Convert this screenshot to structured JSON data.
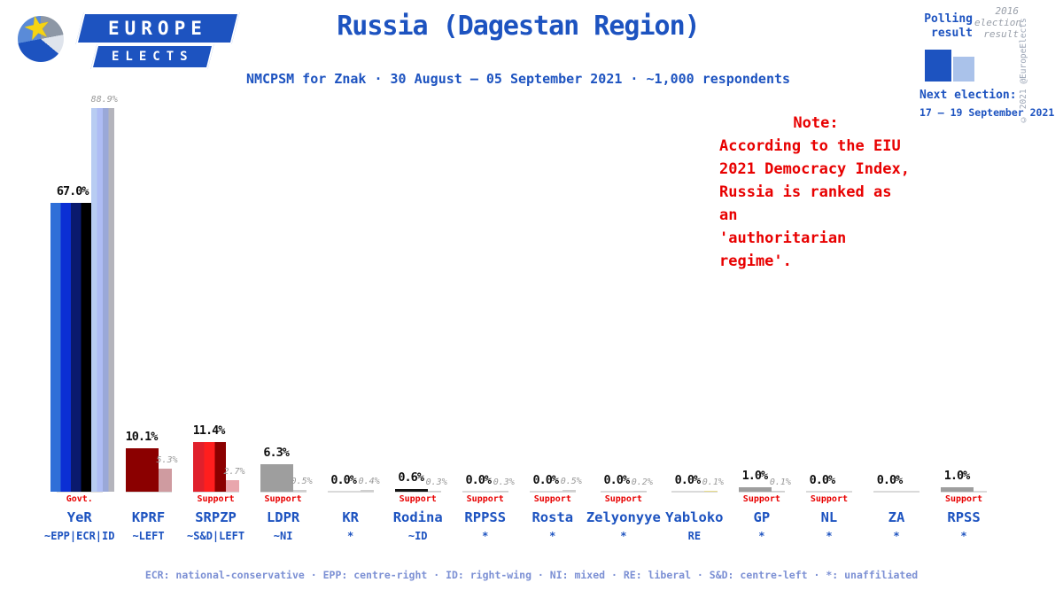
{
  "brand": {
    "line1": "EUROPE",
    "line2": "ELECTS",
    "copyright": "© 2021 @EuropeElects"
  },
  "header": {
    "title": "Russia (Dagestan Region)",
    "subtitle": "NMCPSM for Znak · 30 August – 05 September 2021 · ~1,000 respondents"
  },
  "legend": {
    "polling_label": "Polling result",
    "election_label": "2016 election result",
    "polling_color": "#1d53c0",
    "election_color": "#aac2ea",
    "next_election_label": "Next election:",
    "next_election_date": "17 – 19 September 2021"
  },
  "note": {
    "lines": [
      "Note:",
      "According to the EIU",
      "2021 Democracy Index,",
      "Russia is ranked as an",
      "'authoritarian regime'."
    ]
  },
  "footer": {
    "text": "ECR: national-conservative · EPP: centre-right · ID: right-wing · NI: mixed · RE: liberal · S&D: centre-left · *: unaffiliated"
  },
  "chart_data": {
    "type": "bar",
    "title": "Russia (Dagestan Region)",
    "unit": "%",
    "ylim": [
      0,
      92
    ],
    "grid": false,
    "legend_position": "top-right",
    "series": [
      {
        "name": "Polling result"
      },
      {
        "name": "2016 election result"
      }
    ],
    "categories": [
      "YeR",
      "KPRF",
      "SRPZP",
      "LDPR",
      "KR",
      "Rodina",
      "RPPSS",
      "Rosta",
      "Zelyonyye",
      "Yabloko",
      "GP",
      "NL",
      "ZA",
      "RPSS"
    ],
    "parties": [
      {
        "name": "YeR",
        "affiliation": "~EPP|ECR|ID",
        "tag": "Govt.",
        "polling": 67.0,
        "polling_label": "67.0%",
        "election": 88.9,
        "election_label": "88.9%",
        "wide": true,
        "colors": [
          "#2f6fd8",
          "#0b2fd4",
          "#0a1a6e",
          "#000000"
        ],
        "election_colors": [
          "#b8ccf2",
          "#aebcf4",
          "#9aa8d8",
          "#b4b4bc"
        ]
      },
      {
        "name": "KPRF",
        "affiliation": "~LEFT",
        "tag": "",
        "polling": 10.1,
        "polling_label": "10.1%",
        "election": 5.3,
        "election_label": "5.3%",
        "colors": [
          "#8b0000"
        ],
        "election_colors": [
          "#cf9ba0"
        ]
      },
      {
        "name": "SRPZP",
        "affiliation": "~S&D|LEFT",
        "tag": "Support",
        "polling": 11.4,
        "polling_label": "11.4%",
        "election": 2.7,
        "election_label": "2.7%",
        "colors": [
          "#e0202c",
          "#ff1e1e",
          "#8b0000"
        ],
        "election_colors": [
          "#e9a6ad"
        ]
      },
      {
        "name": "LDPR",
        "affiliation": "~NI",
        "tag": "Support",
        "polling": 6.3,
        "polling_label": "6.3%",
        "election": 0.5,
        "election_label": "0.5%",
        "colors": [
          "#9e9e9e"
        ],
        "election_colors": [
          "#cfcfcf"
        ]
      },
      {
        "name": "KR",
        "affiliation": "*",
        "tag": "",
        "polling": 0.0,
        "polling_label": "0.0%",
        "election": 0.4,
        "election_label": "0.4%",
        "colors": [
          "#9e9e9e"
        ],
        "election_colors": [
          "#cfcfcf"
        ]
      },
      {
        "name": "Rodina",
        "affiliation": "~ID",
        "tag": "Support",
        "polling": 0.6,
        "polling_label": "0.6%",
        "election": 0.3,
        "election_label": "0.3%",
        "colors": [
          "#141414"
        ],
        "election_colors": [
          "#cfcfcf"
        ]
      },
      {
        "name": "RPPSS",
        "affiliation": "*",
        "tag": "Support",
        "polling": 0.0,
        "polling_label": "0.0%",
        "election": 0.3,
        "election_label": "0.3%",
        "colors": [
          "#9e9e9e"
        ],
        "election_colors": [
          "#cfcfcf"
        ]
      },
      {
        "name": "Rosta",
        "affiliation": "*",
        "tag": "Support",
        "polling": 0.0,
        "polling_label": "0.0%",
        "election": 0.5,
        "election_label": "0.5%",
        "colors": [
          "#9e9e9e"
        ],
        "election_colors": [
          "#cfcfcf"
        ]
      },
      {
        "name": "Zelyonyye",
        "affiliation": "*",
        "tag": "Support",
        "polling": 0.0,
        "polling_label": "0.0%",
        "election": 0.2,
        "election_label": "0.2%",
        "colors": [
          "#9e9e9e"
        ],
        "election_colors": [
          "#cfcfcf"
        ]
      },
      {
        "name": "Yabloko",
        "affiliation": "RE",
        "tag": "",
        "polling": 0.0,
        "polling_label": "0.0%",
        "election": 0.1,
        "election_label": "0.1%",
        "colors": [
          "#dfca3e"
        ],
        "election_colors": [
          "#e6dc8a"
        ]
      },
      {
        "name": "GP",
        "affiliation": "*",
        "tag": "Support",
        "polling": 1.0,
        "polling_label": "1.0%",
        "election": 0.1,
        "election_label": "0.1%",
        "colors": [
          "#9e9e9e"
        ],
        "election_colors": [
          "#cfcfcf"
        ]
      },
      {
        "name": "NL",
        "affiliation": "*",
        "tag": "Support",
        "polling": 0.0,
        "polling_label": "0.0%",
        "election": null,
        "election_label": "",
        "colors": [
          "#9e9e9e"
        ],
        "election_colors": null
      },
      {
        "name": "ZA",
        "affiliation": "*",
        "tag": "",
        "polling": 0.0,
        "polling_label": "0.0%",
        "election": null,
        "election_label": "",
        "colors": [
          "#9e9e9e"
        ],
        "election_colors": null
      },
      {
        "name": "RPSS",
        "affiliation": "*",
        "tag": "Support",
        "polling": 1.0,
        "polling_label": "1.0%",
        "election": null,
        "election_label": "",
        "colors": [
          "#9e9e9e"
        ],
        "election_colors": null
      }
    ]
  }
}
